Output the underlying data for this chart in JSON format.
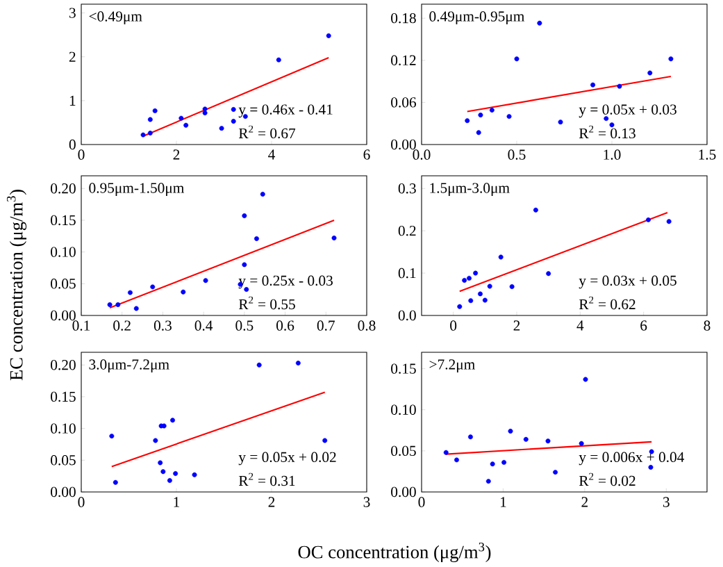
{
  "chart_data": [
    {
      "type": "scatter",
      "xlabel": "OC concentration (μg/m$^{3}$)",
      "ylabel": "EC concentration (μg/m$^{3}$)",
      "xlim": [
        0,
        6
      ],
      "ylim": [
        0,
        3.2
      ],
      "xticks": [
        0,
        2,
        4,
        6
      ],
      "yticks": [
        0,
        1,
        2,
        3
      ],
      "series": [
        {
          "color": "#0000ff",
          "marker": "circle",
          "x": [
            1.3,
            1.45,
            1.45,
            1.55,
            2.1,
            2.2,
            2.6,
            2.6,
            2.95,
            3.2,
            3.2,
            3.45,
            4.15,
            5.2
          ],
          "values": [
            0.22,
            0.57,
            0.26,
            0.77,
            0.6,
            0.44,
            0.81,
            0.72,
            0.37,
            0.8,
            0.53,
            0.64,
            1.93,
            2.48
          ]
        },
        {
          "type": "line",
          "color": "#ff0000",
          "x": [
            1.3,
            5.2
          ],
          "values": [
            0.19,
            1.98
          ]
        }
      ],
      "annotations": [
        "<0.49μm",
        "y = 0.46x - 0.41",
        "R$^{2}$ = 0.67"
      ]
    },
    {
      "type": "scatter",
      "xlim": [
        0,
        1.5
      ],
      "ylim": [
        0,
        0.2
      ],
      "xticks": [
        {
          "value": 0,
          "label": "0.0"
        },
        {
          "value": 0.5,
          "label": "0.5"
        },
        {
          "value": 1,
          "label": "1.0"
        },
        {
          "value": 1.5,
          "label": "1.5"
        }
      ],
      "yticks": [
        {
          "value": 0,
          "label": "0.00"
        },
        {
          "value": 0.06,
          "label": "0.06"
        },
        {
          "value": 0.12,
          "label": "0.12"
        },
        {
          "value": 0.18,
          "label": "0.18"
        }
      ],
      "series": [
        {
          "color": "#0000ff",
          "marker": "circle",
          "x": [
            0.24,
            0.3,
            0.31,
            0.37,
            0.46,
            0.5,
            0.62,
            0.73,
            0.9,
            0.97,
            1.0,
            1.04,
            1.2,
            1.31
          ],
          "values": [
            0.034,
            0.017,
            0.042,
            0.049,
            0.04,
            0.122,
            0.173,
            0.032,
            0.085,
            0.037,
            0.028,
            0.083,
            0.102,
            0.122
          ]
        },
        {
          "type": "line",
          "color": "#ff0000",
          "x": [
            0.24,
            1.31
          ],
          "values": [
            0.047,
            0.097
          ]
        }
      ],
      "annotations": [
        "0.49μm-0.95μm",
        "y = 0.05x + 0.03",
        "R$^{2}$ = 0.13"
      ]
    },
    {
      "type": "scatter",
      "xlim": [
        0.1,
        0.8
      ],
      "ylim": [
        0,
        0.22
      ],
      "xticks": [
        0.1,
        0.2,
        0.3,
        0.4,
        0.5,
        0.6,
        0.7,
        0.8
      ],
      "yticks": [
        {
          "value": 0,
          "label": "0.00"
        },
        {
          "value": 0.05,
          "label": "0.05"
        },
        {
          "value": 0.1,
          "label": "0.10"
        },
        {
          "value": 0.15,
          "label": "0.15"
        },
        {
          "value": 0.2,
          "label": "0.20"
        }
      ],
      "series": [
        {
          "color": "#0000ff",
          "marker": "circle",
          "x": [
            0.17,
            0.19,
            0.22,
            0.235,
            0.275,
            0.35,
            0.405,
            0.49,
            0.5,
            0.5,
            0.505,
            0.53,
            0.545,
            0.72
          ],
          "values": [
            0.017,
            0.017,
            0.036,
            0.011,
            0.045,
            0.037,
            0.055,
            0.049,
            0.157,
            0.08,
            0.041,
            0.121,
            0.191,
            0.122
          ]
        },
        {
          "type": "line",
          "color": "#ff0000",
          "x": [
            0.17,
            0.72
          ],
          "values": [
            0.012,
            0.15
          ]
        }
      ],
      "annotations": [
        "0.95μm-1.50μm",
        "y = 0.25x - 0.03",
        "R$^{2}$ = 0.55"
      ]
    },
    {
      "type": "scatter",
      "xlim": [
        -1,
        8
      ],
      "ylim": [
        0,
        0.33
      ],
      "xticks": [
        0,
        2,
        4,
        6,
        8
      ],
      "yticks": [
        {
          "value": 0,
          "label": "0.0"
        },
        {
          "value": 0.1,
          "label": "0.1"
        },
        {
          "value": 0.2,
          "label": "0.2"
        },
        {
          "value": 0.3,
          "label": "0.3"
        }
      ],
      "series": [
        {
          "color": "#0000ff",
          "marker": "circle",
          "x": [
            0.2,
            0.35,
            0.5,
            0.55,
            0.7,
            0.85,
            1.0,
            1.15,
            1.5,
            1.85,
            2.6,
            3.0,
            6.15,
            6.8
          ],
          "values": [
            0.021,
            0.083,
            0.088,
            0.035,
            0.1,
            0.051,
            0.036,
            0.069,
            0.138,
            0.068,
            0.249,
            0.099,
            0.226,
            0.222
          ]
        },
        {
          "type": "line",
          "color": "#ff0000",
          "x": [
            0.2,
            6.75
          ],
          "values": [
            0.057,
            0.243
          ]
        }
      ],
      "annotations": [
        "1.5μm-3.0μm",
        "y = 0.03x + 0.05",
        "R$^{2}$ = 0.62"
      ]
    },
    {
      "type": "scatter",
      "xlim": [
        0,
        3
      ],
      "ylim": [
        0,
        0.22
      ],
      "xticks": [
        0,
        1,
        2,
        3
      ],
      "yticks": [
        {
          "value": 0,
          "label": "0.00"
        },
        {
          "value": 0.05,
          "label": "0.05"
        },
        {
          "value": 0.1,
          "label": "0.10"
        },
        {
          "value": 0.15,
          "label": "0.15"
        },
        {
          "value": 0.2,
          "label": "0.20"
        }
      ],
      "series": [
        {
          "color": "#0000ff",
          "marker": "circle",
          "x": [
            0.32,
            0.36,
            0.78,
            0.83,
            0.84,
            0.87,
            0.86,
            0.93,
            0.96,
            0.99,
            1.19,
            1.87,
            2.28,
            2.56
          ],
          "values": [
            0.088,
            0.015,
            0.081,
            0.046,
            0.104,
            0.104,
            0.032,
            0.018,
            0.113,
            0.029,
            0.027,
            0.2,
            0.203,
            0.081
          ]
        },
        {
          "type": "line",
          "color": "#ff0000",
          "x": [
            0.32,
            2.56
          ],
          "values": [
            0.04,
            0.157
          ]
        }
      ],
      "annotations": [
        "3.0μm-7.2μm",
        "y = 0.05x + 0.02",
        "R$^{2}$ = 0.31"
      ]
    },
    {
      "type": "scatter",
      "xlim": [
        0,
        3.5
      ],
      "ylim": [
        0,
        0.17
      ],
      "xticks": [
        0,
        1,
        2,
        3
      ],
      "yticks": [
        {
          "value": 0,
          "label": "0.00"
        },
        {
          "value": 0.05,
          "label": "0.05"
        },
        {
          "value": 0.1,
          "label": "0.10"
        },
        {
          "value": 0.15,
          "label": "0.15"
        }
      ],
      "series": [
        {
          "color": "#0000ff",
          "marker": "circle",
          "x": [
            0.3,
            0.43,
            0.6,
            0.82,
            0.87,
            1.01,
            1.09,
            1.28,
            1.55,
            1.64,
            1.96,
            2.01,
            2.82,
            2.81
          ],
          "values": [
            0.048,
            0.039,
            0.067,
            0.013,
            0.034,
            0.036,
            0.074,
            0.064,
            0.062,
            0.024,
            0.059,
            0.137,
            0.049,
            0.03
          ]
        },
        {
          "type": "line",
          "color": "#ff0000",
          "x": [
            0.3,
            2.82
          ],
          "values": [
            0.046,
            0.061
          ]
        }
      ],
      "annotations": [
        ">7.2μm",
        "y = 0.006x + 0.04",
        "R$^{2}$ = 0.02"
      ]
    }
  ]
}
